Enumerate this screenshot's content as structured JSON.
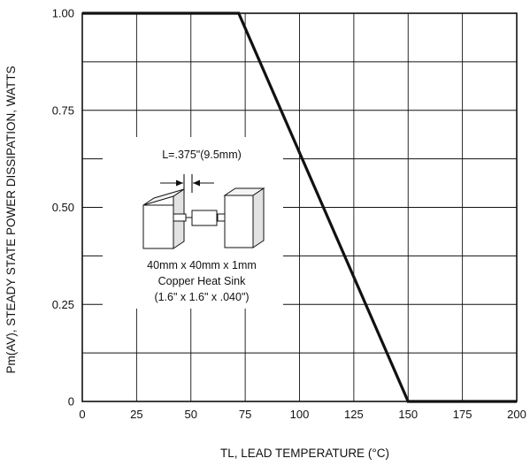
{
  "chart_data": {
    "type": "line",
    "title": "",
    "xlabel": "TL, LEAD TEMPERATURE (°C)",
    "ylabel": "Pm(AV), STEADY STATE POWER DISSIPATION, WATTS",
    "xlim": [
      0,
      200
    ],
    "ylim": [
      0,
      1.0
    ],
    "x_ticks": [
      0,
      25,
      50,
      75,
      100,
      125,
      150,
      175,
      200
    ],
    "x_tick_labels": [
      "0",
      "25",
      "50",
      "75",
      "100",
      "125",
      "150",
      "175",
      "200"
    ],
    "y_ticks": [
      0,
      0.125,
      0.25,
      0.375,
      0.5,
      0.625,
      0.75,
      0.875,
      1.0
    ],
    "y_tick_labels": [
      "0",
      "",
      "0.25",
      "",
      "0.50",
      "",
      "0.75",
      "",
      "1.00"
    ],
    "grid": true,
    "series": [
      {
        "x": [
          0,
          72,
          150,
          200
        ],
        "y": [
          1.0,
          1.0,
          0.0,
          0.0
        ]
      }
    ],
    "annotations": {
      "dimension_label": "L=.375\"(9.5mm)",
      "heatsink_lines": [
        "40mm x 40mm x 1mm",
        "Copper Heat Sink",
        "(1.6\" x 1.6\" x .040\")"
      ]
    }
  },
  "colors": {
    "axis": "#111111",
    "grid": "#111111",
    "line": "#111111"
  }
}
